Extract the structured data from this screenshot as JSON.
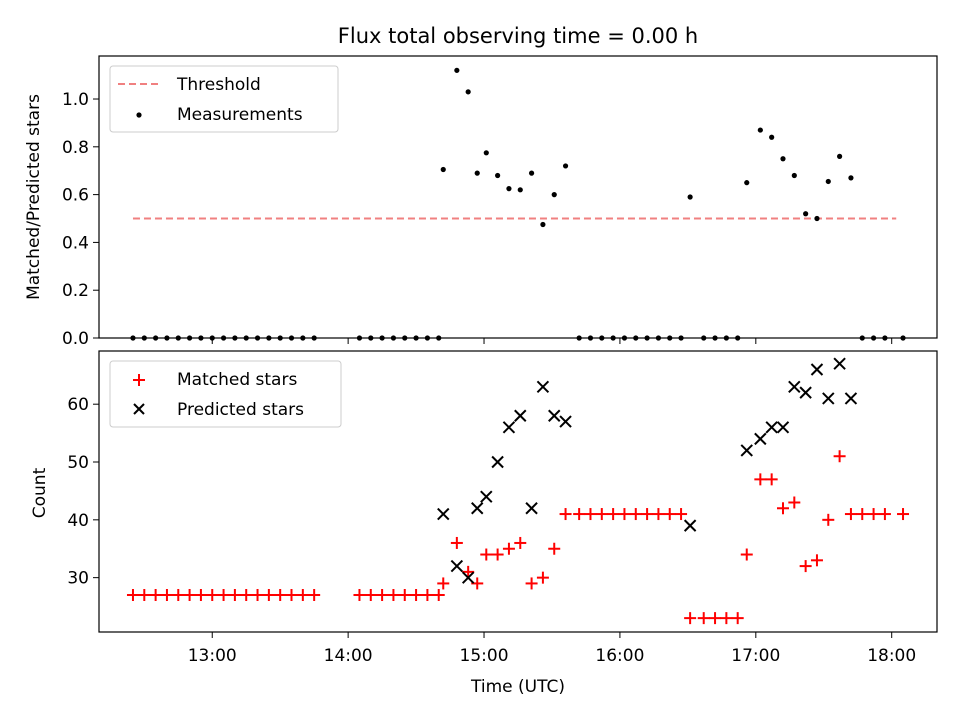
{
  "chart_data": [
    {
      "type": "scatter",
      "title": "Flux total observing time = 0.00 h",
      "xlabel": "",
      "ylabel": "Matched/Predicted stars",
      "xlim": [
        "12:10",
        "18:20"
      ],
      "ylim": [
        0,
        1.18
      ],
      "yticks": [
        0.0,
        0.2,
        0.4,
        0.6,
        0.8,
        1.0
      ],
      "ytick_labels": [
        "0.0",
        "0.2",
        "0.4",
        "0.6",
        "0.8",
        "1.0"
      ],
      "threshold": {
        "name": "Threshold",
        "value": 0.5,
        "x_range": [
          "12:25",
          "18:02"
        ],
        "color": "#f08080",
        "style": "dashed"
      },
      "legend": {
        "position": "top-left",
        "entries": [
          "Threshold",
          "Measurements"
        ]
      },
      "series": [
        {
          "name": "Measurements",
          "marker": "dot",
          "color": "#000000",
          "points": [
            [
              "12:25",
              0
            ],
            [
              "12:30",
              0
            ],
            [
              "12:35",
              0
            ],
            [
              "12:40",
              0
            ],
            [
              "12:45",
              0
            ],
            [
              "12:50",
              0
            ],
            [
              "12:55",
              0
            ],
            [
              "13:00",
              0
            ],
            [
              "13:05",
              0
            ],
            [
              "13:10",
              0
            ],
            [
              "13:15",
              0
            ],
            [
              "13:20",
              0
            ],
            [
              "13:25",
              0
            ],
            [
              "13:30",
              0
            ],
            [
              "13:35",
              0
            ],
            [
              "13:40",
              0
            ],
            [
              "13:45",
              0
            ],
            [
              "14:05",
              0
            ],
            [
              "14:10",
              0
            ],
            [
              "14:15",
              0
            ],
            [
              "14:20",
              0
            ],
            [
              "14:25",
              0
            ],
            [
              "14:30",
              0
            ],
            [
              "14:35",
              0
            ],
            [
              "14:40",
              0
            ],
            [
              "14:42",
              0.705
            ],
            [
              "14:48",
              1.12
            ],
            [
              "14:53",
              1.03
            ],
            [
              "14:57",
              0.69
            ],
            [
              "15:01",
              0.775
            ],
            [
              "15:06",
              0.68
            ],
            [
              "15:11",
              0.625
            ],
            [
              "15:16",
              0.62
            ],
            [
              "15:21",
              0.69
            ],
            [
              "15:26",
              0.475
            ],
            [
              "15:31",
              0.6
            ],
            [
              "15:36",
              0.72
            ],
            [
              "15:42",
              0
            ],
            [
              "15:47",
              0
            ],
            [
              "15:52",
              0
            ],
            [
              "15:57",
              0
            ],
            [
              "16:02",
              0
            ],
            [
              "16:07",
              0
            ],
            [
              "16:12",
              0
            ],
            [
              "16:17",
              0
            ],
            [
              "16:22",
              0
            ],
            [
              "16:27",
              0
            ],
            [
              "16:31",
              0.59
            ],
            [
              "16:37",
              0
            ],
            [
              "16:42",
              0
            ],
            [
              "16:47",
              0
            ],
            [
              "16:52",
              0
            ],
            [
              "16:56",
              0.65
            ],
            [
              "17:02",
              0.87
            ],
            [
              "17:07",
              0.84
            ],
            [
              "17:12",
              0.75
            ],
            [
              "17:17",
              0.68
            ],
            [
              "17:22",
              0.52
            ],
            [
              "17:27",
              0.5
            ],
            [
              "17:32",
              0.655
            ],
            [
              "17:37",
              0.76
            ],
            [
              "17:42",
              0.67
            ],
            [
              "17:47",
              0
            ],
            [
              "17:52",
              0
            ],
            [
              "17:57",
              0
            ],
            [
              "18:05",
              0
            ]
          ]
        }
      ]
    },
    {
      "type": "scatter",
      "title": "",
      "xlabel": "Time (UTC)",
      "ylabel": "Count",
      "xlim": [
        "12:10",
        "18:20"
      ],
      "ylim": [
        20.6,
        69.2
      ],
      "yticks": [
        30,
        40,
        50,
        60
      ],
      "ytick_labels": [
        "30",
        "40",
        "50",
        "60"
      ],
      "xticks": [
        "13:00",
        "14:00",
        "15:00",
        "16:00",
        "17:00",
        "18:00"
      ],
      "xtick_labels": [
        "13:00",
        "14:00",
        "15:00",
        "16:00",
        "17:00",
        "18:00"
      ],
      "legend": {
        "position": "top-left",
        "entries": [
          "Matched stars",
          "Predicted stars"
        ]
      },
      "series": [
        {
          "name": "Matched stars",
          "marker": "plus",
          "color": "#ff0000",
          "points": [
            [
              "12:25",
              27
            ],
            [
              "12:30",
              27
            ],
            [
              "12:35",
              27
            ],
            [
              "12:40",
              27
            ],
            [
              "12:45",
              27
            ],
            [
              "12:50",
              27
            ],
            [
              "12:55",
              27
            ],
            [
              "13:00",
              27
            ],
            [
              "13:05",
              27
            ],
            [
              "13:10",
              27
            ],
            [
              "13:15",
              27
            ],
            [
              "13:20",
              27
            ],
            [
              "13:25",
              27
            ],
            [
              "13:30",
              27
            ],
            [
              "13:35",
              27
            ],
            [
              "13:40",
              27
            ],
            [
              "13:45",
              27
            ],
            [
              "14:05",
              27
            ],
            [
              "14:10",
              27
            ],
            [
              "14:15",
              27
            ],
            [
              "14:20",
              27
            ],
            [
              "14:25",
              27
            ],
            [
              "14:30",
              27
            ],
            [
              "14:35",
              27
            ],
            [
              "14:40",
              27
            ],
            [
              "14:42",
              29
            ],
            [
              "14:48",
              36
            ],
            [
              "14:53",
              31
            ],
            [
              "14:57",
              29
            ],
            [
              "15:01",
              34
            ],
            [
              "15:06",
              34
            ],
            [
              "15:11",
              35
            ],
            [
              "15:16",
              36
            ],
            [
              "15:21",
              29
            ],
            [
              "15:26",
              30
            ],
            [
              "15:31",
              35
            ],
            [
              "15:36",
              41
            ],
            [
              "15:42",
              41
            ],
            [
              "15:47",
              41
            ],
            [
              "15:52",
              41
            ],
            [
              "15:57",
              41
            ],
            [
              "16:02",
              41
            ],
            [
              "16:07",
              41
            ],
            [
              "16:12",
              41
            ],
            [
              "16:17",
              41
            ],
            [
              "16:22",
              41
            ],
            [
              "16:27",
              41
            ],
            [
              "16:31",
              23
            ],
            [
              "16:37",
              23
            ],
            [
              "16:42",
              23
            ],
            [
              "16:47",
              23
            ],
            [
              "16:52",
              23
            ],
            [
              "16:56",
              34
            ],
            [
              "17:02",
              47
            ],
            [
              "17:07",
              47
            ],
            [
              "17:12",
              42
            ],
            [
              "17:17",
              43
            ],
            [
              "17:22",
              32
            ],
            [
              "17:27",
              33
            ],
            [
              "17:32",
              40
            ],
            [
              "17:37",
              51
            ],
            [
              "17:42",
              41
            ],
            [
              "17:47",
              41
            ],
            [
              "17:52",
              41
            ],
            [
              "17:57",
              41
            ],
            [
              "18:05",
              41
            ]
          ]
        },
        {
          "name": "Predicted stars",
          "marker": "x",
          "color": "#000000",
          "points": [
            [
              "14:42",
              41
            ],
            [
              "14:48",
              32
            ],
            [
              "14:53",
              30
            ],
            [
              "14:57",
              42
            ],
            [
              "15:01",
              44
            ],
            [
              "15:06",
              50
            ],
            [
              "15:11",
              56
            ],
            [
              "15:16",
              58
            ],
            [
              "15:21",
              42
            ],
            [
              "15:26",
              63
            ],
            [
              "15:31",
              58
            ],
            [
              "15:36",
              57
            ],
            [
              "16:31",
              39
            ],
            [
              "16:56",
              52
            ],
            [
              "17:02",
              54
            ],
            [
              "17:07",
              56
            ],
            [
              "17:12",
              56
            ],
            [
              "17:17",
              63
            ],
            [
              "17:22",
              62
            ],
            [
              "17:27",
              66
            ],
            [
              "17:32",
              61
            ],
            [
              "17:37",
              67
            ],
            [
              "17:42",
              61
            ]
          ]
        }
      ]
    }
  ]
}
